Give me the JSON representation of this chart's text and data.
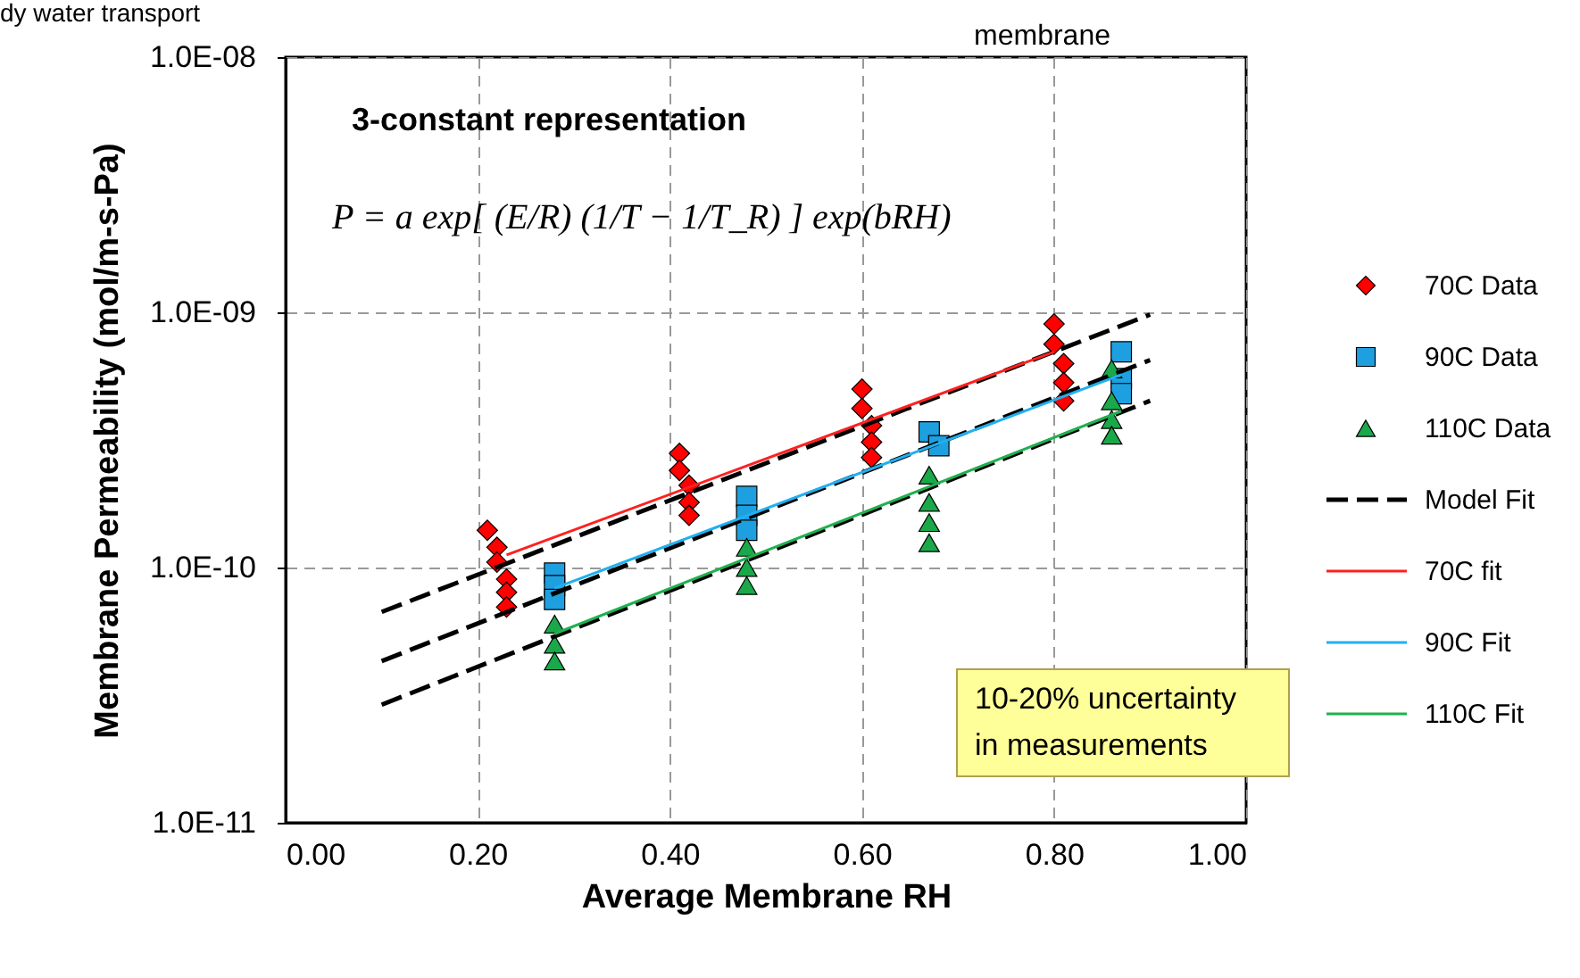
{
  "chart_data": {
    "type": "scatter",
    "xlabel": "Average Membrane RH",
    "ylabel": "Membrane Permeability (mol/m-s-Pa)",
    "annotations": [
      "dy water transport",
      "membrane",
      "3-constant representation",
      "P = a exp[ (E/R) (1/T − 1/T_R) ] exp(bRH)",
      "10-20% uncertainty\nin measurements"
    ],
    "xlim": [
      0,
      1
    ],
    "xticks": [
      {
        "value": 0,
        "label": "0.00"
      },
      {
        "value": 0.2,
        "label": "0.20"
      },
      {
        "value": 0.4,
        "label": "0.40"
      },
      {
        "value": 0.6,
        "label": "0.60"
      },
      {
        "value": 0.8,
        "label": "0.80"
      },
      {
        "value": 1,
        "label": "1.00"
      }
    ],
    "ylim": [
      1e-11,
      1e-08
    ],
    "yticks": [
      {
        "value": 1e-11,
        "label": "1.0E-11"
      },
      {
        "value": 1e-10,
        "label": "1.0E-10"
      },
      {
        "value": 1e-09,
        "label": "1.0E-09"
      },
      {
        "value": 1e-08,
        "label": "1.0E-08"
      }
    ],
    "log": "y",
    "grid": true,
    "legend": "right",
    "series": [
      {
        "name": "70C Data",
        "type": "scatter",
        "marker": "diamond",
        "color": "#ff0000",
        "x": [
          0.21,
          0.22,
          0.22,
          0.23,
          0.23,
          0.23,
          0.41,
          0.41,
          0.42,
          0.42,
          0.42,
          0.6,
          0.6,
          0.61,
          0.61,
          0.61,
          0.8,
          0.8,
          0.81,
          0.81,
          0.81
        ],
        "values": [
          1.4e-10,
          1.2e-10,
          1.05e-10,
          9e-11,
          8e-11,
          7e-11,
          2.8e-10,
          2.4e-10,
          2.1e-10,
          1.8e-10,
          1.6e-10,
          5e-10,
          4.2e-10,
          3.6e-10,
          3.1e-10,
          2.7e-10,
          9e-10,
          7.5e-10,
          6.3e-10,
          5.3e-10,
          4.5e-10
        ]
      },
      {
        "name": "90C Data",
        "type": "scatter",
        "marker": "square",
        "color": "#1ea0e0",
        "x": [
          0.28,
          0.28,
          0.28,
          0.48,
          0.48,
          0.48,
          0.67,
          0.68,
          0.87,
          0.87,
          0.87
        ],
        "values": [
          9.5e-11,
          8.5e-11,
          7.5e-11,
          1.9e-10,
          1.6e-10,
          1.4e-10,
          3.4e-10,
          3e-10,
          7e-10,
          5.5e-10,
          4.8e-10
        ]
      },
      {
        "name": "110C Data",
        "type": "scatter",
        "marker": "triangle",
        "color": "#1aa84a",
        "x": [
          0.28,
          0.28,
          0.28,
          0.48,
          0.48,
          0.48,
          0.67,
          0.67,
          0.67,
          0.67,
          0.86,
          0.86,
          0.86,
          0.86
        ],
        "values": [
          6e-11,
          5e-11,
          4.3e-11,
          1.2e-10,
          1e-10,
          8.5e-11,
          2.3e-10,
          1.8e-10,
          1.5e-10,
          1.25e-10,
          6e-10,
          4.5e-10,
          3.8e-10,
          3.3e-10
        ]
      },
      {
        "name": "Model Fit",
        "type": "line",
        "line_style": "dashed",
        "color": "#000000",
        "x": [
          0.1,
          0.9
        ],
        "values": [
          6.7e-11,
          9.8e-10
        ]
      },
      {
        "type": "line",
        "line_style": "dashed",
        "color": "#000000",
        "x": [
          0.1,
          0.9
        ],
        "values": [
          4.3e-11,
          6.5e-10
        ]
      },
      {
        "type": "line",
        "line_style": "dashed",
        "color": "#000000",
        "x": [
          0.1,
          0.9
        ],
        "values": [
          2.9e-11,
          4.5e-10
        ]
      },
      {
        "name": "70C fit",
        "type": "line",
        "line_style": "solid",
        "color": "#ff2020",
        "x": [
          0.23,
          0.8
        ],
        "values": [
          1.12e-10,
          7e-10
        ]
      },
      {
        "name": "90C Fit",
        "type": "line",
        "line_style": "solid",
        "color": "#20b0f0",
        "x": [
          0.28,
          0.87
        ],
        "values": [
          8.3e-11,
          5.7e-10
        ]
      },
      {
        "name": "110C Fit",
        "type": "line",
        "line_style": "solid",
        "color": "#20b050",
        "x": [
          0.28,
          0.87
        ],
        "values": [
          5.5e-11,
          4.1e-10
        ]
      }
    ]
  }
}
